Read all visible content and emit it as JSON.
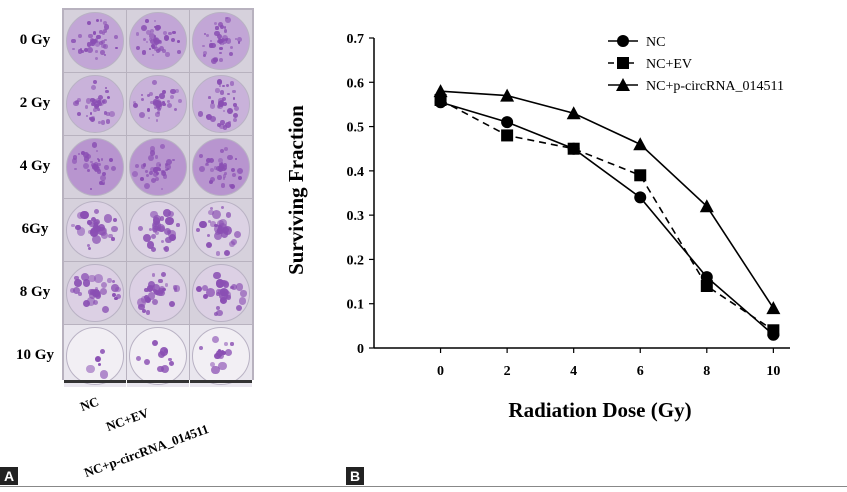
{
  "panels": {
    "a": {
      "letter": "A",
      "row_labels": [
        "0 Gy",
        "2 Gy",
        "4 Gy",
        "6Gy",
        "8 Gy",
        "10 Gy"
      ],
      "column_labels": [
        "NC",
        "NC+EV",
        "NC+p-circRNA_014511"
      ],
      "stain_color": "#8a4fb3"
    },
    "b": {
      "letter": "B"
    }
  },
  "chart_data": {
    "type": "line",
    "title": "",
    "xlabel": "Radiation Dose (Gy)",
    "ylabel": "Surviving Fraction",
    "x": [
      0,
      2,
      4,
      6,
      8,
      10
    ],
    "xlim": [
      -2,
      10.5
    ],
    "ylim": [
      0,
      0.7
    ],
    "xticks": [
      "0",
      "2",
      "4",
      "6",
      "8",
      "10"
    ],
    "yticks": [
      "0",
      "0.1",
      "0.2",
      "0.3",
      "0.4",
      "0.5",
      "0.6",
      "0.7"
    ],
    "legend_position": "top-right",
    "grid": false,
    "series": [
      {
        "name": "NC",
        "marker": "circle",
        "line": "solid",
        "color": "#000000",
        "values": [
          0.555,
          0.51,
          0.45,
          0.34,
          0.16,
          0.03
        ]
      },
      {
        "name": "NC+EV",
        "marker": "square",
        "line": "dashed",
        "color": "#000000",
        "values": [
          0.56,
          0.48,
          0.45,
          0.39,
          0.14,
          0.04
        ]
      },
      {
        "name": "NC+p-circRNA_014511",
        "marker": "triangle",
        "line": "solid",
        "color": "#000000",
        "values": [
          0.58,
          0.57,
          0.53,
          0.46,
          0.32,
          0.09
        ]
      }
    ]
  }
}
